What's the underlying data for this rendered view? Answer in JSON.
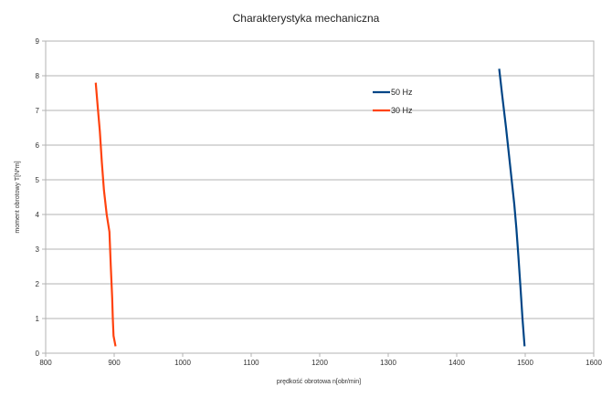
{
  "chart_data": {
    "type": "line",
    "title": "Charakterystyka mechaniczna",
    "xlabel": "prędkość obrotowa n[obr/min]",
    "ylabel": "moment obrotowy T[N*m]",
    "xlim": [
      800,
      1600
    ],
    "ylim": [
      0,
      9
    ],
    "xticks": [
      "800",
      "900",
      "1000",
      "1100",
      "1200",
      "1300",
      "1400",
      "1500",
      "1600"
    ],
    "yticks": [
      "0",
      "1",
      "2",
      "3",
      "4",
      "5",
      "6",
      "7",
      "8",
      "9"
    ],
    "grid": true,
    "legend_position": "top-right",
    "series": [
      {
        "name": "50 Hz",
        "color": "#004586",
        "points": [
          {
            "x": 1499,
            "y": 0.2
          },
          {
            "x": 1496,
            "y": 1.0
          },
          {
            "x": 1493,
            "y": 1.9
          },
          {
            "x": 1490,
            "y": 2.8
          },
          {
            "x": 1487,
            "y": 3.6
          },
          {
            "x": 1484,
            "y": 4.3
          },
          {
            "x": 1478,
            "y": 5.4
          },
          {
            "x": 1472,
            "y": 6.5
          },
          {
            "x": 1466,
            "y": 7.5
          },
          {
            "x": 1462,
            "y": 8.2
          }
        ]
      },
      {
        "name": "30 Hz",
        "color": "#ff420e",
        "points": [
          {
            "x": 902,
            "y": 0.2
          },
          {
            "x": 899,
            "y": 0.5
          },
          {
            "x": 898,
            "y": 1.0
          },
          {
            "x": 897,
            "y": 1.6
          },
          {
            "x": 895,
            "y": 2.5
          },
          {
            "x": 893,
            "y": 3.5
          },
          {
            "x": 889,
            "y": 4.0
          },
          {
            "x": 885,
            "y": 4.7
          },
          {
            "x": 882,
            "y": 5.5
          },
          {
            "x": 879,
            "y": 6.4
          },
          {
            "x": 876,
            "y": 7.1
          },
          {
            "x": 873,
            "y": 7.8
          }
        ]
      }
    ]
  }
}
